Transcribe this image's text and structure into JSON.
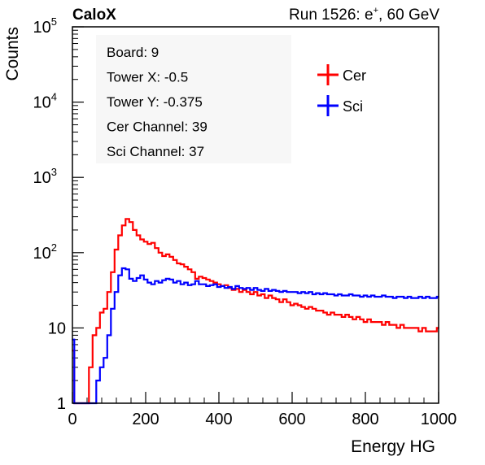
{
  "header": {
    "experiment": "CaloX",
    "run_prefix": "Run 1526: e",
    "run_sup": "+",
    "run_suffix": ", 60 GeV"
  },
  "info_box": {
    "lines": [
      "Board: 9",
      "Tower X: -0.5",
      "Tower Y: -0.375",
      "Cer Channel: 39",
      "Sci Channel: 37"
    ]
  },
  "colors": {
    "cer": "#ff0000",
    "sci": "#0000ff",
    "axis": "#000000"
  },
  "chart_data": {
    "type": "line",
    "title": "",
    "xlabel": "Energy HG",
    "ylabel": "Counts",
    "xlim": [
      0,
      1000
    ],
    "ylim": [
      1,
      100000
    ],
    "y_scale": "log",
    "grid": false,
    "legend_position": "top-right",
    "x_ticks": [
      "0",
      "200",
      "400",
      "600",
      "800",
      "1000"
    ],
    "y_ticks": [
      {
        "base": "1",
        "exp": ""
      },
      {
        "base": "10",
        "exp": ""
      },
      {
        "base": "10",
        "exp": "2"
      },
      {
        "base": "10",
        "exp": "3"
      },
      {
        "base": "10",
        "exp": "4"
      },
      {
        "base": "10",
        "exp": "5"
      }
    ],
    "series": [
      {
        "name": "Cer",
        "color": "#ff0000",
        "x": [
          0,
          10,
          20,
          30,
          40,
          50,
          60,
          70,
          80,
          90,
          100,
          110,
          120,
          130,
          140,
          150,
          160,
          170,
          180,
          190,
          200,
          210,
          220,
          230,
          240,
          250,
          260,
          270,
          280,
          290,
          300,
          310,
          320,
          330,
          340,
          350,
          360,
          370,
          380,
          390,
          400,
          410,
          420,
          430,
          440,
          450,
          460,
          470,
          480,
          490,
          500,
          510,
          520,
          530,
          540,
          550,
          560,
          570,
          580,
          590,
          600,
          610,
          620,
          630,
          640,
          650,
          660,
          670,
          680,
          690,
          700,
          710,
          720,
          730,
          740,
          750,
          760,
          770,
          780,
          790,
          800,
          810,
          820,
          830,
          840,
          850,
          860,
          870,
          880,
          890,
          900,
          910,
          920,
          930,
          940,
          950,
          960,
          970,
          980,
          990,
          1000
        ],
        "values": [
          5,
          1,
          1,
          1,
          1,
          3,
          8,
          10,
          16,
          18,
          30,
          55,
          110,
          170,
          230,
          280,
          255,
          200,
          170,
          150,
          140,
          130,
          135,
          115,
          100,
          90,
          95,
          88,
          80,
          72,
          70,
          65,
          60,
          55,
          45,
          48,
          46,
          44,
          42,
          40,
          38,
          36,
          37,
          34,
          32,
          33,
          30,
          32,
          30,
          28,
          30,
          27,
          28,
          25,
          27,
          25,
          24,
          22,
          24,
          22,
          20,
          21,
          20,
          19,
          18,
          19,
          18,
          17,
          17,
          16,
          15,
          16,
          15,
          15,
          14,
          15,
          14,
          13,
          14,
          13,
          12,
          13,
          12,
          12,
          12,
          11,
          12,
          11,
          11,
          10,
          11,
          10,
          10,
          10,
          10,
          9,
          10,
          9,
          9,
          9,
          10
        ]
      },
      {
        "name": "Sci",
        "color": "#0000ff",
        "x": [
          0,
          10,
          20,
          30,
          40,
          50,
          60,
          70,
          80,
          90,
          100,
          110,
          120,
          130,
          140,
          150,
          160,
          170,
          180,
          190,
          200,
          210,
          220,
          230,
          240,
          250,
          260,
          270,
          280,
          290,
          300,
          310,
          320,
          330,
          340,
          350,
          360,
          370,
          380,
          390,
          400,
          410,
          420,
          430,
          440,
          450,
          460,
          470,
          480,
          490,
          500,
          510,
          520,
          530,
          540,
          550,
          560,
          570,
          580,
          590,
          600,
          610,
          620,
          630,
          640,
          650,
          660,
          670,
          680,
          690,
          700,
          710,
          720,
          730,
          740,
          750,
          760,
          770,
          780,
          790,
          800,
          810,
          820,
          830,
          840,
          850,
          860,
          870,
          880,
          890,
          900,
          910,
          920,
          930,
          940,
          950,
          960,
          970,
          980,
          990,
          1000
        ],
        "values": [
          7,
          1,
          1,
          1,
          1,
          1,
          1,
          2,
          3,
          4,
          8,
          18,
          30,
          50,
          62,
          60,
          45,
          42,
          46,
          50,
          44,
          40,
          38,
          42,
          40,
          43,
          45,
          44,
          40,
          42,
          38,
          40,
          37,
          38,
          42,
          38,
          38,
          36,
          37,
          38,
          35,
          36,
          34,
          35,
          33,
          36,
          34,
          33,
          34,
          32,
          34,
          32,
          31,
          33,
          31,
          32,
          31,
          30,
          31,
          30,
          30,
          30,
          29,
          30,
          29,
          30,
          28,
          29,
          28,
          29,
          28,
          28,
          27,
          28,
          27,
          27,
          28,
          27,
          27,
          26,
          27,
          26,
          27,
          26,
          26,
          27,
          26,
          26,
          25,
          26,
          26,
          25,
          26,
          25,
          25,
          26,
          25,
          26,
          25,
          25,
          26
        ]
      }
    ]
  }
}
